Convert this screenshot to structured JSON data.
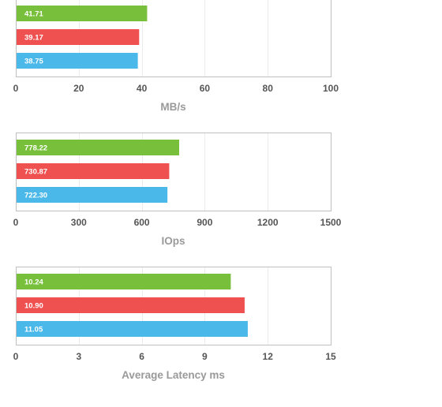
{
  "colors": {
    "green": "#78c03c",
    "red": "#ef5050",
    "blue": "#4ab8e8",
    "frame": "#bfbfbf",
    "grid": "#ececec"
  },
  "chart_data": [
    {
      "type": "bar",
      "orientation": "horizontal",
      "xlabel": "MB/s",
      "xlim": [
        0,
        100
      ],
      "ticks": [
        "0",
        "20",
        "40",
        "60",
        "80",
        "100"
      ],
      "tick_values": [
        0,
        20,
        40,
        60,
        80,
        100
      ],
      "values": [
        41.71,
        39.17,
        38.75
      ],
      "labels": [
        "41.71",
        "39.17",
        "38.75"
      ],
      "bar_colors": [
        "#78c03c",
        "#ef5050",
        "#4ab8e8"
      ],
      "grid": true
    },
    {
      "type": "bar",
      "orientation": "horizontal",
      "xlabel": "IOps",
      "xlim": [
        0,
        1500
      ],
      "ticks": [
        "0",
        "300",
        "600",
        "900",
        "1200",
        "1500"
      ],
      "tick_values": [
        0,
        300,
        600,
        900,
        1200,
        1500
      ],
      "values": [
        778.22,
        730.87,
        722.3
      ],
      "labels": [
        "778.22",
        "730.87",
        "722.30"
      ],
      "bar_colors": [
        "#78c03c",
        "#ef5050",
        "#4ab8e8"
      ],
      "grid": true
    },
    {
      "type": "bar",
      "orientation": "horizontal",
      "xlabel": "Average Latency ms",
      "xlim": [
        0,
        15
      ],
      "ticks": [
        "0",
        "3",
        "6",
        "9",
        "12",
        "15"
      ],
      "tick_values": [
        0,
        3,
        6,
        9,
        12,
        15
      ],
      "values": [
        10.24,
        10.9,
        11.05
      ],
      "labels": [
        "10.24",
        "10.90",
        "11.05"
      ],
      "bar_colors": [
        "#78c03c",
        "#ef5050",
        "#4ab8e8"
      ],
      "grid": true
    }
  ]
}
